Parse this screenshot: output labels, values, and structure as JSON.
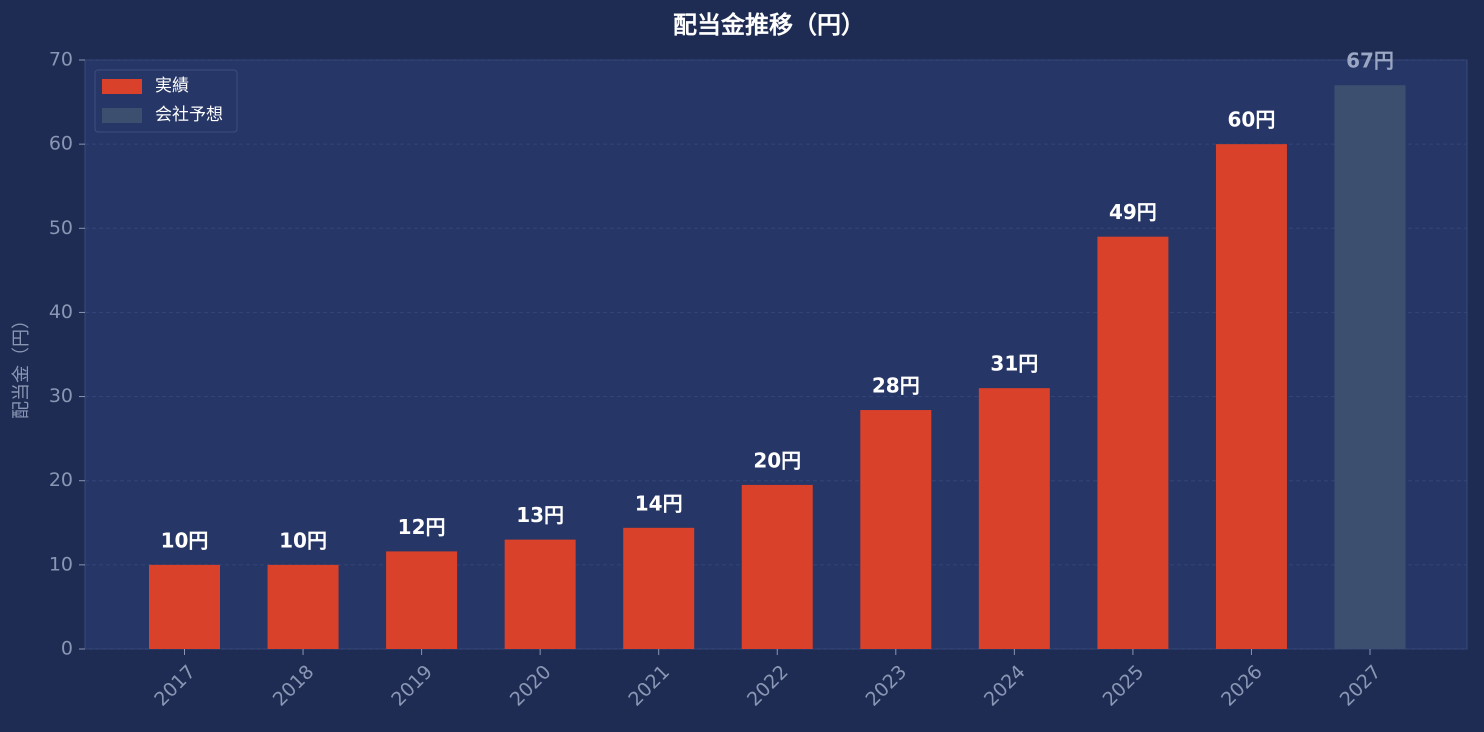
{
  "chart_data": {
    "type": "bar",
    "title": "配当金推移（円）",
    "y_label": "配当金（円）",
    "categories": [
      "2017",
      "2018",
      "2019",
      "2020",
      "2021",
      "2022",
      "2023",
      "2024",
      "2025",
      "2026",
      "2027"
    ],
    "series": [
      {
        "name": "実績",
        "color": "#d9412b",
        "values": [
          10,
          10,
          11.6,
          13,
          14.4,
          19.5,
          28.4,
          31,
          49,
          60,
          null
        ],
        "value_labels": [
          "10円",
          "10円",
          "12円",
          "13円",
          "14円",
          "20円",
          "28円",
          "31円",
          "49円",
          "60円",
          null
        ]
      },
      {
        "name": "会社予想",
        "color": "#3d4f6e",
        "values": [
          null,
          null,
          null,
          null,
          null,
          null,
          null,
          null,
          null,
          null,
          67
        ],
        "value_labels": [
          null,
          null,
          null,
          null,
          null,
          null,
          null,
          null,
          null,
          null,
          "67円"
        ]
      }
    ],
    "ylim": [
      0,
      70
    ],
    "yticks": [
      0,
      10,
      20,
      30,
      40,
      50,
      60,
      70
    ],
    "grid": true,
    "legend": "upper left"
  }
}
